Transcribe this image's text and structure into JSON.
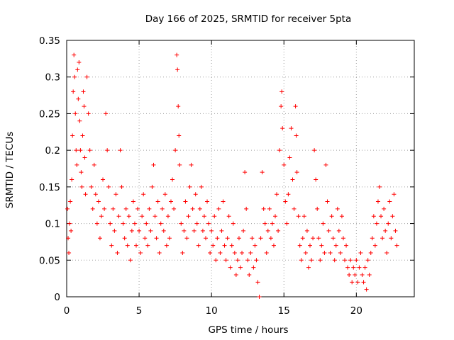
{
  "chart_data": {
    "type": "scatter",
    "title": "Day 166 of 2025, SRMTID for receiver 5pta",
    "xlabel": "GPS time / hours",
    "ylabel": "SRMTID / TECUs",
    "xlim": [
      0,
      24
    ],
    "ylim": [
      0,
      0.35
    ],
    "x_ticks": [
      0,
      5,
      10,
      15,
      20
    ],
    "y_ticks": [
      0,
      0.05,
      0.1,
      0.15,
      0.2,
      0.25,
      0.3,
      0.35
    ],
    "x_tick_labels": [
      "0",
      "5",
      "10",
      "15",
      "20"
    ],
    "y_tick_labels": [
      "0",
      "0.05",
      "0.1",
      "0.15",
      "0.2",
      "0.25",
      "0.3",
      "0.35"
    ],
    "grid": true,
    "marker": "+",
    "color": "#ff0000",
    "series": [
      {
        "name": "SRMTID",
        "points": [
          [
            0.05,
            0.12
          ],
          [
            0.1,
            0.08
          ],
          [
            0.15,
            0.06
          ],
          [
            0.2,
            0.1
          ],
          [
            0.25,
            0.13
          ],
          [
            0.3,
            0.09
          ],
          [
            0.35,
            0.16
          ],
          [
            0.4,
            0.22
          ],
          [
            0.45,
            0.28
          ],
          [
            0.5,
            0.33
          ],
          [
            0.55,
            0.3
          ],
          [
            0.6,
            0.25
          ],
          [
            0.65,
            0.2
          ],
          [
            0.7,
            0.18
          ],
          [
            0.75,
            0.31
          ],
          [
            0.8,
            0.27
          ],
          [
            0.85,
            0.32
          ],
          [
            0.9,
            0.24
          ],
          [
            0.95,
            0.2
          ],
          [
            1.0,
            0.17
          ],
          [
            1.05,
            0.15
          ],
          [
            1.1,
            0.22
          ],
          [
            1.15,
            0.28
          ],
          [
            1.2,
            0.26
          ],
          [
            1.25,
            0.19
          ],
          [
            1.3,
            0.14
          ],
          [
            1.4,
            0.3
          ],
          [
            1.5,
            0.25
          ],
          [
            1.6,
            0.2
          ],
          [
            1.7,
            0.15
          ],
          [
            1.8,
            0.12
          ],
          [
            1.9,
            0.18
          ],
          [
            2.0,
            0.14
          ],
          [
            2.1,
            0.1
          ],
          [
            2.2,
            0.13
          ],
          [
            2.3,
            0.08
          ],
          [
            2.4,
            0.11
          ],
          [
            2.5,
            0.16
          ],
          [
            2.6,
            0.12
          ],
          [
            2.7,
            0.25
          ],
          [
            2.8,
            0.2
          ],
          [
            2.9,
            0.15
          ],
          [
            3.0,
            0.1
          ],
          [
            3.1,
            0.07
          ],
          [
            3.2,
            0.12
          ],
          [
            3.3,
            0.09
          ],
          [
            3.4,
            0.14
          ],
          [
            3.5,
            0.06
          ],
          [
            3.6,
            0.11
          ],
          [
            3.7,
            0.2
          ],
          [
            3.8,
            0.15
          ],
          [
            3.9,
            0.1
          ],
          [
            4.0,
            0.08
          ],
          [
            4.1,
            0.12
          ],
          [
            4.2,
            0.07
          ],
          [
            4.3,
            0.11
          ],
          [
            4.4,
            0.05
          ],
          [
            4.5,
            0.09
          ],
          [
            4.6,
            0.13
          ],
          [
            4.7,
            0.1
          ],
          [
            4.8,
            0.07
          ],
          [
            4.9,
            0.12
          ],
          [
            5.0,
            0.09
          ],
          [
            5.1,
            0.06
          ],
          [
            5.2,
            0.11
          ],
          [
            5.3,
            0.14
          ],
          [
            5.4,
            0.08
          ],
          [
            5.5,
            0.1
          ],
          [
            5.6,
            0.07
          ],
          [
            5.7,
            0.12
          ],
          [
            5.8,
            0.09
          ],
          [
            5.9,
            0.15
          ],
          [
            6.0,
            0.18
          ],
          [
            6.1,
            0.11
          ],
          [
            6.2,
            0.08
          ],
          [
            6.3,
            0.13
          ],
          [
            6.4,
            0.06
          ],
          [
            6.5,
            0.1
          ],
          [
            6.6,
            0.12
          ],
          [
            6.7,
            0.09
          ],
          [
            6.8,
            0.14
          ],
          [
            6.9,
            0.07
          ],
          [
            7.0,
            0.11
          ],
          [
            7.1,
            0.08
          ],
          [
            7.2,
            0.13
          ],
          [
            7.3,
            0.16
          ],
          [
            7.4,
            0.12
          ],
          [
            7.5,
            0.2
          ],
          [
            7.6,
            0.33
          ],
          [
            7.65,
            0.31
          ],
          [
            7.7,
            0.26
          ],
          [
            7.75,
            0.22
          ],
          [
            7.8,
            0.18
          ],
          [
            7.9,
            0.1
          ],
          [
            8.0,
            0.06
          ],
          [
            8.1,
            0.09
          ],
          [
            8.2,
            0.13
          ],
          [
            8.3,
            0.08
          ],
          [
            8.4,
            0.11
          ],
          [
            8.5,
            0.15
          ],
          [
            8.6,
            0.18
          ],
          [
            8.7,
            0.12
          ],
          [
            8.8,
            0.09
          ],
          [
            8.9,
            0.14
          ],
          [
            9.0,
            0.1
          ],
          [
            9.1,
            0.07
          ],
          [
            9.2,
            0.12
          ],
          [
            9.3,
            0.15
          ],
          [
            9.4,
            0.09
          ],
          [
            9.5,
            0.11
          ],
          [
            9.6,
            0.08
          ],
          [
            9.7,
            0.13
          ],
          [
            9.8,
            0.1
          ],
          [
            9.9,
            0.06
          ],
          [
            10.0,
            0.09
          ],
          [
            10.1,
            0.07
          ],
          [
            10.2,
            0.11
          ],
          [
            10.3,
            0.05
          ],
          [
            10.4,
            0.08
          ],
          [
            10.5,
            0.12
          ],
          [
            10.6,
            0.06
          ],
          [
            10.7,
            0.09
          ],
          [
            10.8,
            0.13
          ],
          [
            10.9,
            0.07
          ],
          [
            11.0,
            0.05
          ],
          [
            11.1,
            0.08
          ],
          [
            11.2,
            0.11
          ],
          [
            11.3,
            0.04
          ],
          [
            11.4,
            0.07
          ],
          [
            11.5,
            0.1
          ],
          [
            11.6,
            0.06
          ],
          [
            11.7,
            0.03
          ],
          [
            11.8,
            0.05
          ],
          [
            11.9,
            0.08
          ],
          [
            12.0,
            0.04
          ],
          [
            12.1,
            0.06
          ],
          [
            12.2,
            0.09
          ],
          [
            12.3,
            0.17
          ],
          [
            12.4,
            0.12
          ],
          [
            12.5,
            0.05
          ],
          [
            12.6,
            0.03
          ],
          [
            12.7,
            0.06
          ],
          [
            12.8,
            0.08
          ],
          [
            12.9,
            0.04
          ],
          [
            13.0,
            0.07
          ],
          [
            13.1,
            0.05
          ],
          [
            13.2,
            0.02
          ],
          [
            13.3,
            0.0
          ],
          [
            13.4,
            0.08
          ],
          [
            13.5,
            0.17
          ],
          [
            13.6,
            0.12
          ],
          [
            13.7,
            0.1
          ],
          [
            13.8,
            0.06
          ],
          [
            13.9,
            0.09
          ],
          [
            14.0,
            0.12
          ],
          [
            14.1,
            0.08
          ],
          [
            14.2,
            0.1
          ],
          [
            14.3,
            0.07
          ],
          [
            14.4,
            0.11
          ],
          [
            14.5,
            0.14
          ],
          [
            14.6,
            0.09
          ],
          [
            14.7,
            0.2
          ],
          [
            14.8,
            0.26
          ],
          [
            14.85,
            0.28
          ],
          [
            14.9,
            0.23
          ],
          [
            15.0,
            0.18
          ],
          [
            15.1,
            0.13
          ],
          [
            15.2,
            0.1
          ],
          [
            15.3,
            0.14
          ],
          [
            15.4,
            0.19
          ],
          [
            15.5,
            0.23
          ],
          [
            15.6,
            0.16
          ],
          [
            15.7,
            0.12
          ],
          [
            15.8,
            0.26
          ],
          [
            15.85,
            0.22
          ],
          [
            15.9,
            0.17
          ],
          [
            16.0,
            0.11
          ],
          [
            16.1,
            0.07
          ],
          [
            16.2,
            0.05
          ],
          [
            16.3,
            0.08
          ],
          [
            16.4,
            0.11
          ],
          [
            16.5,
            0.06
          ],
          [
            16.6,
            0.09
          ],
          [
            16.7,
            0.04
          ],
          [
            16.8,
            0.07
          ],
          [
            16.9,
            0.05
          ],
          [
            17.0,
            0.08
          ],
          [
            17.1,
            0.2
          ],
          [
            17.2,
            0.16
          ],
          [
            17.3,
            0.12
          ],
          [
            17.4,
            0.08
          ],
          [
            17.5,
            0.05
          ],
          [
            17.6,
            0.07
          ],
          [
            17.7,
            0.1
          ],
          [
            17.8,
            0.06
          ],
          [
            17.9,
            0.18
          ],
          [
            18.0,
            0.13
          ],
          [
            18.1,
            0.09
          ],
          [
            18.2,
            0.06
          ],
          [
            18.3,
            0.11
          ],
          [
            18.4,
            0.08
          ],
          [
            18.5,
            0.05
          ],
          [
            18.6,
            0.07
          ],
          [
            18.7,
            0.12
          ],
          [
            18.8,
            0.09
          ],
          [
            18.9,
            0.06
          ],
          [
            19.0,
            0.11
          ],
          [
            19.1,
            0.08
          ],
          [
            19.2,
            0.05
          ],
          [
            19.3,
            0.07
          ],
          [
            19.4,
            0.04
          ],
          [
            19.5,
            0.03
          ],
          [
            19.6,
            0.05
          ],
          [
            19.7,
            0.02
          ],
          [
            19.8,
            0.04
          ],
          [
            19.9,
            0.03
          ],
          [
            20.0,
            0.05
          ],
          [
            20.1,
            0.02
          ],
          [
            20.2,
            0.04
          ],
          [
            20.3,
            0.06
          ],
          [
            20.4,
            0.03
          ],
          [
            20.5,
            0.02
          ],
          [
            20.6,
            0.04
          ],
          [
            20.7,
            0.01
          ],
          [
            20.8,
            0.05
          ],
          [
            20.9,
            0.03
          ],
          [
            21.0,
            0.06
          ],
          [
            21.1,
            0.08
          ],
          [
            21.2,
            0.11
          ],
          [
            21.3,
            0.07
          ],
          [
            21.4,
            0.1
          ],
          [
            21.5,
            0.13
          ],
          [
            21.6,
            0.15
          ],
          [
            21.7,
            0.11
          ],
          [
            21.8,
            0.08
          ],
          [
            21.9,
            0.12
          ],
          [
            22.0,
            0.09
          ],
          [
            22.1,
            0.06
          ],
          [
            22.2,
            0.1
          ],
          [
            22.3,
            0.13
          ],
          [
            22.4,
            0.08
          ],
          [
            22.5,
            0.11
          ],
          [
            22.6,
            0.14
          ],
          [
            22.7,
            0.09
          ],
          [
            22.8,
            0.07
          ]
        ]
      }
    ]
  }
}
